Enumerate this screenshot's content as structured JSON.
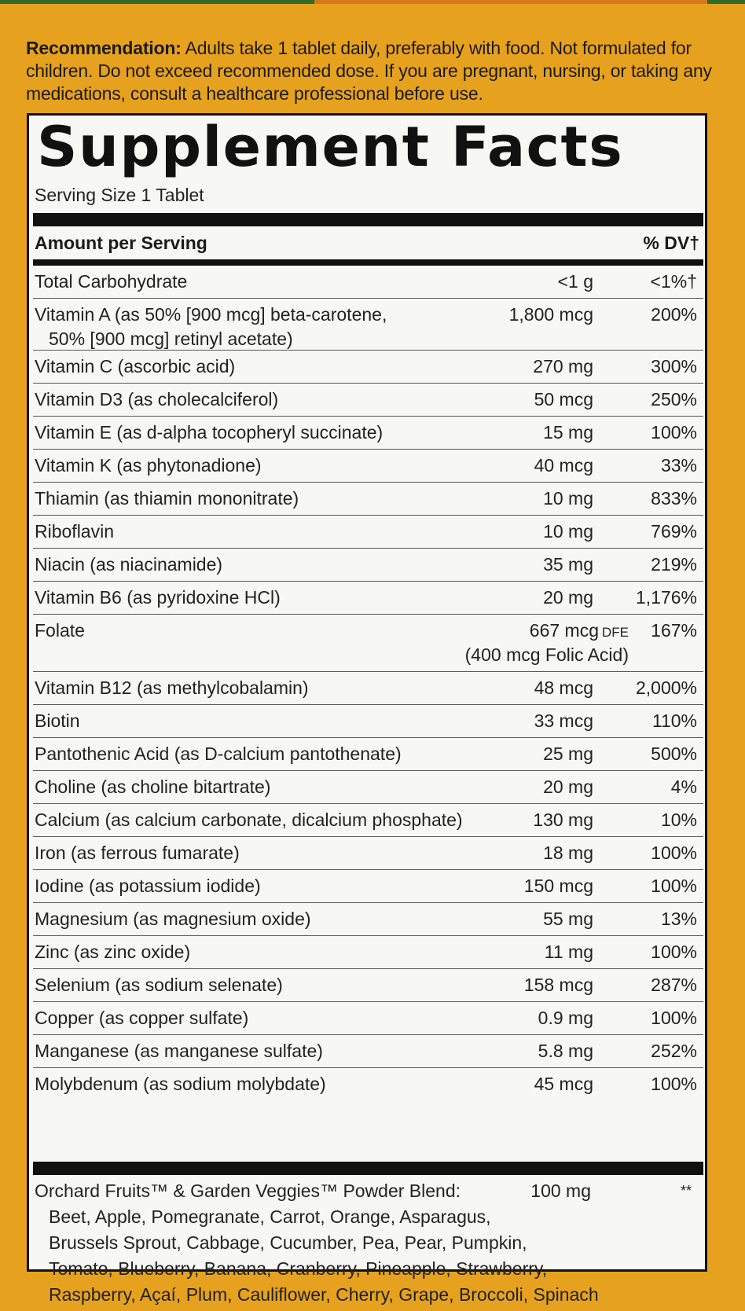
{
  "recommendation": {
    "label": "Recommendation:",
    "text": " Adults take 1 tablet daily, preferably with food. Not formulated for children. Do not exceed recommended dose. If you are pregnant, nursing, or taking any medications, consult a healthcare professional before use."
  },
  "facts": {
    "title": "Supplement Facts",
    "serving": "Serving Size 1 Tablet",
    "amount_header": "Amount per Serving",
    "dv_header": "% DV†",
    "rows": [
      {
        "name": "Total Carbohydrate",
        "name2": "",
        "amount": "<1 g",
        "dv": "<1%†"
      },
      {
        "name": "Vitamin A (as 50% [900 mcg] beta-carotene,",
        "name2": "50% [900 mcg] retinyl acetate)",
        "amount": "1,800 mcg",
        "dv": "200%"
      },
      {
        "name": "Vitamin C (ascorbic acid)",
        "name2": "",
        "amount": "270 mg",
        "dv": "300%"
      },
      {
        "name": "Vitamin D3 (as cholecalciferol)",
        "name2": "",
        "amount": "50 mcg",
        "dv": "250%"
      },
      {
        "name": "Vitamin E (as d-alpha tocopheryl succinate)",
        "name2": "",
        "amount": "15 mg",
        "dv": "100%"
      },
      {
        "name": "Vitamin K (as phytonadione)",
        "name2": "",
        "amount": "40 mcg",
        "dv": "33%"
      },
      {
        "name": "Thiamin (as thiamin mononitrate)",
        "name2": "",
        "amount": "10 mg",
        "dv": "833%"
      },
      {
        "name": "Riboflavin",
        "name2": "",
        "amount": "10 mg",
        "dv": "769%"
      },
      {
        "name": "Niacin (as niacinamide)",
        "name2": "",
        "amount": "35 mg",
        "dv": "219%"
      },
      {
        "name": "Vitamin B6 (as pyridoxine HCl)",
        "name2": "",
        "amount": "20 mg",
        "dv": "1,176%"
      },
      {
        "name": "Folate",
        "name2": "",
        "amount": "667 mcg",
        "amount_unit": "DFE",
        "amount_sub": "(400 mcg Folic Acid)",
        "dv": "167%"
      },
      {
        "name": "Vitamin B12 (as methylcobalamin)",
        "name2": "",
        "amount": "48 mcg",
        "dv": "2,000%"
      },
      {
        "name": "Biotin",
        "name2": "",
        "amount": "33 mcg",
        "dv": "110%"
      },
      {
        "name": "Pantothenic Acid (as D-calcium pantothenate)",
        "name2": "",
        "amount": "25 mg",
        "dv": "500%"
      },
      {
        "name": "Choline (as choline bitartrate)",
        "name2": "",
        "amount": "20 mg",
        "dv": "4%"
      },
      {
        "name": "Calcium (as calcium carbonate, dicalcium phosphate)",
        "name2": "",
        "amount": "130 mg",
        "dv": "10%"
      },
      {
        "name": "Iron (as ferrous fumarate)",
        "name2": "",
        "amount": "18 mg",
        "dv": "100%"
      },
      {
        "name": "Iodine (as potassium iodide)",
        "name2": "",
        "amount": "150 mcg",
        "dv": "100%"
      },
      {
        "name": "Magnesium (as magnesium oxide)",
        "name2": "",
        "amount": "55 mg",
        "dv": "13%"
      },
      {
        "name": "Zinc (as zinc oxide)",
        "name2": "",
        "amount": "11 mg",
        "dv": "100%"
      },
      {
        "name": "Selenium (as sodium selenate)",
        "name2": "",
        "amount": "158 mcg",
        "dv": "287%"
      },
      {
        "name": "Copper (as copper sulfate)",
        "name2": "",
        "amount": "0.9 mg",
        "dv": "100%"
      },
      {
        "name": "Manganese (as manganese sulfate)",
        "name2": "",
        "amount": "5.8 mg",
        "dv": "252%"
      },
      {
        "name": "Molybdenum (as sodium molybdate)",
        "name2": "",
        "amount": "45 mcg",
        "dv": "100%"
      }
    ],
    "blend": {
      "name": "Orchard Fruits™ & Garden Veggies™ Powder Blend:",
      "amount": "100 mg",
      "dv": "**",
      "ingredient_lines": [
        "Beet, Apple, Pomegranate, Carrot, Orange, Asparagus,",
        "Brussels Sprout, Cabbage, Cucumber, Pea, Pear, Pumpkin,",
        "Tomato, Blueberry, Banana, Cranberry, Pineapple, Strawberry,",
        "Raspberry, Açaí, Plum, Cauliflower, Cherry, Grape, Broccoli, Spinach"
      ]
    }
  },
  "colors": {
    "background": "#e6a21e",
    "panel": "#f7f7f5",
    "ink": "#111111"
  }
}
